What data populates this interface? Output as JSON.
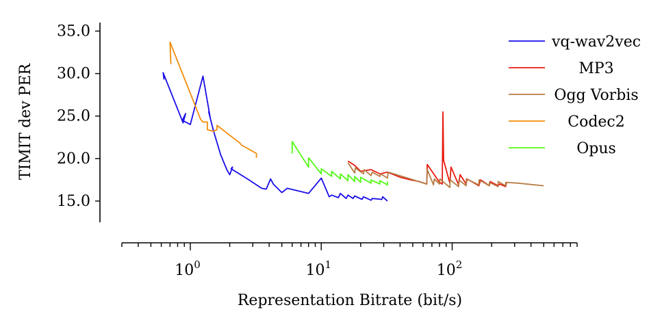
{
  "chart_data": {
    "type": "line",
    "title": "",
    "xlabel": "Representation Bitrate (bit/s)",
    "ylabel": "TIMIT dev PER",
    "xscale": "log",
    "xlim": [
      0.3,
      900
    ],
    "ylim": [
      12.5,
      36.0
    ],
    "x_ticks": [
      {
        "value": 1,
        "base": "10",
        "exp": "0"
      },
      {
        "value": 10,
        "base": "10",
        "exp": "1"
      },
      {
        "value": 100,
        "base": "10",
        "exp": "2"
      }
    ],
    "y_ticks": [
      {
        "value": 15,
        "label": "15.0"
      },
      {
        "value": 20,
        "label": "20.0"
      },
      {
        "value": 25,
        "label": "25.0"
      },
      {
        "value": 30,
        "label": "30.0"
      },
      {
        "value": 35,
        "label": "35.0"
      }
    ],
    "legend_position": "top-right",
    "series": [
      {
        "name": "vq-wav2vec",
        "color": "#1a0dea",
        "x": [
          0.63,
          0.62,
          0.88,
          0.92,
          0.87,
          1.0,
          1.25,
          1.42,
          1.38,
          1.5,
          1.7,
          1.9,
          2.0,
          2.1,
          2.05,
          2.8,
          3.5,
          3.8,
          4.1,
          4.3,
          5.0,
          5.5,
          8.0,
          10.0,
          11.5,
          12.0,
          13.5,
          14.0,
          15.5,
          16.0,
          17.5,
          18.0,
          20.5,
          21.0,
          24.0,
          24.5,
          29.0,
          29.5,
          32.0
        ],
        "y": [
          29.3,
          30.1,
          24.2,
          25.3,
          24.5,
          24.0,
          29.7,
          24.8,
          25.5,
          23.3,
          20.5,
          18.7,
          18.1,
          19.0,
          18.8,
          17.5,
          16.5,
          16.4,
          17.6,
          17.0,
          16.0,
          16.5,
          15.9,
          17.7,
          15.5,
          15.7,
          15.4,
          15.9,
          15.3,
          15.7,
          15.3,
          15.6,
          15.2,
          15.5,
          15.1,
          15.3,
          15.2,
          15.5,
          15.0
        ]
      },
      {
        "name": "MP3",
        "color": "#e8190d",
        "x": [
          16.0,
          18.0,
          20.0,
          24.0,
          28.0,
          32.0,
          40.0,
          48.0,
          56.0,
          64.0,
          64.5,
          80.0,
          84.0,
          85.0,
          86.0,
          96.0,
          98.0,
          112.0,
          115.0,
          128.0,
          130.0,
          160.0,
          165.0,
          192.0,
          195.0,
          224.0,
          230.0,
          256.0,
          260.0
        ],
        "y": [
          19.7,
          19.2,
          18.5,
          18.7,
          18.2,
          18.4,
          17.8,
          17.5,
          17.3,
          17.0,
          19.3,
          17.2,
          17.0,
          25.5,
          19.8,
          17.1,
          19.0,
          16.9,
          18.1,
          17.0,
          17.6,
          16.8,
          17.5,
          16.8,
          17.3,
          16.8,
          17.0,
          16.7,
          17.2
        ]
      },
      {
        "name": "Ogg Vorbis",
        "color": "#b57b43",
        "x": [
          16.0,
          18.0,
          18.2,
          21.0,
          21.3,
          24.0,
          24.5,
          28.0,
          28.5,
          32.0,
          32.5,
          48.0,
          64.0,
          64.5,
          72.0,
          73.0,
          80.0,
          80.5,
          96.0,
          96.5,
          112.0,
          112.5,
          128.0,
          128.5,
          160.0,
          160.5,
          192.0,
          192.5,
          224.0,
          224.5,
          256.0,
          256.5,
          320.0,
          500.0
        ],
        "y": [
          19.5,
          18.3,
          18.9,
          18.2,
          18.7,
          18.0,
          18.4,
          17.9,
          18.2,
          17.7,
          18.4,
          17.6,
          17.0,
          18.7,
          16.9,
          17.6,
          17.0,
          17.6,
          16.6,
          17.5,
          16.7,
          17.5,
          16.8,
          17.6,
          16.9,
          17.5,
          16.8,
          17.2,
          16.7,
          17.3,
          16.8,
          17.2,
          17.1,
          16.8
        ]
      },
      {
        "name": "Codec2",
        "color": "#f28c0a",
        "x": [
          0.71,
          0.7,
          1.2,
          1.25,
          1.35,
          1.35,
          1.5,
          1.6,
          1.6,
          2.4,
          2.45,
          3.2,
          3.2
        ],
        "y": [
          31.1,
          33.7,
          24.6,
          24.3,
          24.3,
          23.4,
          23.2,
          23.4,
          23.9,
          21.8,
          21.6,
          20.6,
          20.1
        ]
      },
      {
        "name": "Opus",
        "color": "#52fa14",
        "x": [
          6.0,
          6.0,
          8.0,
          8.0,
          10.0,
          10.0,
          12.0,
          12.0,
          14.0,
          14.0,
          16.0,
          16.0,
          18.0,
          18.0,
          20.0,
          20.0,
          24.0,
          24.0,
          28.0,
          28.0,
          32.0,
          32.0
        ],
        "y": [
          20.6,
          22.0,
          19.0,
          20.1,
          18.2,
          18.8,
          17.9,
          18.5,
          17.6,
          18.2,
          17.4,
          18.1,
          17.3,
          17.9,
          17.2,
          17.8,
          17.1,
          17.5,
          17.0,
          17.4,
          16.9,
          17.3
        ]
      }
    ]
  }
}
